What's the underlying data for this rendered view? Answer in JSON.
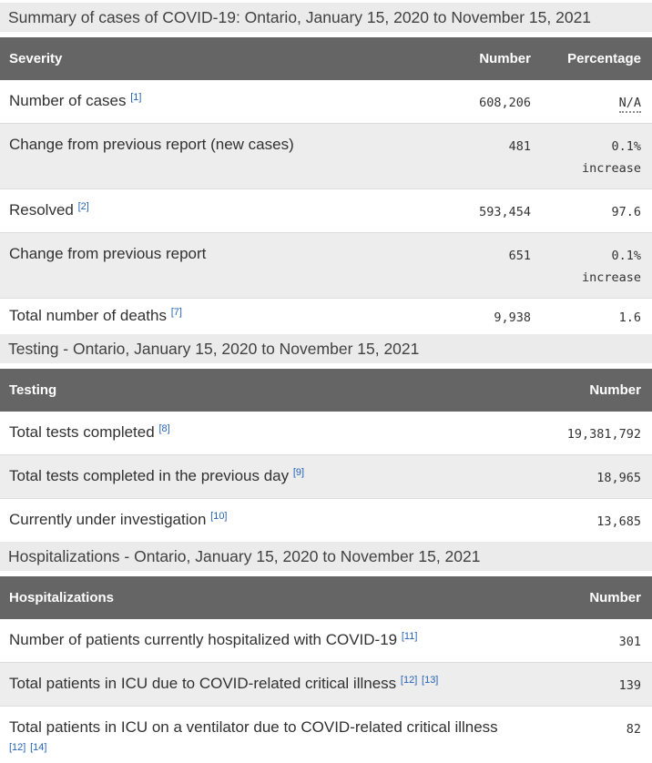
{
  "page": {
    "title": "Summary of cases of COVID-19: Ontario, January 15, 2020 to November 15, 2021"
  },
  "colors": {
    "table_header_bg": "#656565",
    "alt_row_bg": "#ededed",
    "section_bar_bg": "#ebebeb",
    "footnote_link": "#2563b8"
  },
  "summary_table": {
    "columns": [
      "Severity",
      "Number",
      "Percentage"
    ],
    "rows": [
      {
        "label": "Number of cases",
        "footnotes": [
          "[1]"
        ],
        "number": "608,206",
        "percentage": "N/A"
      },
      {
        "label": "Change from previous report (new cases)",
        "footnotes": [],
        "number": "481",
        "percentage": "0.1%\nincrease"
      },
      {
        "label": "Resolved",
        "footnotes": [
          "[2]"
        ],
        "number": "593,454",
        "percentage": "97.6"
      },
      {
        "label": "Change from previous report",
        "footnotes": [],
        "number": "651",
        "percentage": "0.1%\nincrease"
      },
      {
        "label": "Total number of deaths",
        "footnotes": [
          "[7]"
        ],
        "number": "9,938",
        "percentage": "1.6"
      }
    ]
  },
  "testing_section": {
    "heading": "Testing - Ontario, January 15, 2020 to November 15, 2021",
    "columns": [
      "Testing",
      "Number"
    ],
    "rows": [
      {
        "label": "Total tests completed",
        "footnotes": [
          "[8]"
        ],
        "number": "19,381,792"
      },
      {
        "label": "Total tests completed in the previous day",
        "footnotes": [
          "[9]"
        ],
        "number": "18,965"
      },
      {
        "label": "Currently under investigation",
        "footnotes": [
          "[10]"
        ],
        "number": "13,685"
      }
    ]
  },
  "hospitalizations_section": {
    "heading": "Hospitalizations - Ontario, January 15, 2020 to November 15, 2021",
    "columns": [
      "Hospitalizations",
      "Number"
    ],
    "rows": [
      {
        "label": "Number of patients currently hospitalized with COVID-19",
        "footnotes": [
          "[11]"
        ],
        "number": "301"
      },
      {
        "label": "Total patients in ICU due to COVID-related critical illness",
        "footnotes": [
          "[12]",
          "[13]"
        ],
        "number": "139"
      },
      {
        "label": "Total patients in ICU on a ventilator due to COVID-related critical illness",
        "footnotes": [
          "[12]",
          "[14]"
        ],
        "number": "82"
      }
    ]
  }
}
